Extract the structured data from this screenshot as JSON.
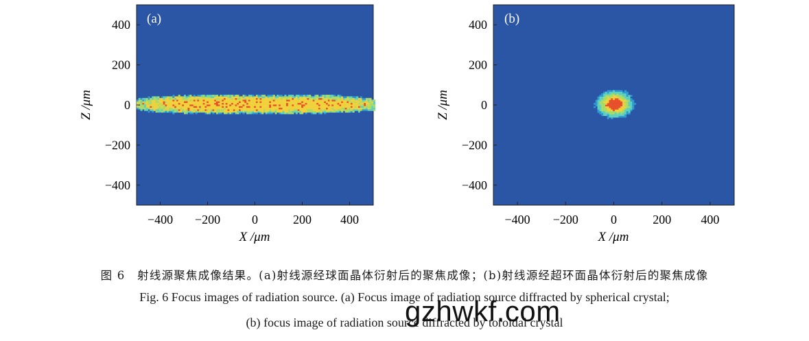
{
  "chart_data": [
    {
      "type": "heatmap",
      "panel_label": "(a)",
      "xlabel": "X /μm",
      "ylabel": "Z /μm",
      "xlim": [
        -500,
        500
      ],
      "ylim": [
        -500,
        500
      ],
      "xticks": [
        "−400",
        "−200",
        "0",
        "200",
        "400"
      ],
      "yticks": [
        "400",
        "200",
        "0",
        "−200",
        "−400"
      ],
      "xtick_values": [
        -400,
        -200,
        0,
        200,
        400
      ],
      "ytick_values": [
        400,
        200,
        0,
        -200,
        -400
      ],
      "spot": {
        "shape": "elongated",
        "x_range": [
          -480,
          480
        ],
        "z_range": [
          -45,
          45
        ]
      },
      "background_color": "#2b56a6",
      "colormap": [
        "#2b56a6",
        "#2f9bd3",
        "#5ed1bf",
        "#a8dc6a",
        "#f2d23c",
        "#e8502b"
      ]
    },
    {
      "type": "heatmap",
      "panel_label": "(b)",
      "xlabel": "X /μm",
      "ylabel": "Z /μm",
      "xlim": [
        -500,
        500
      ],
      "ylim": [
        -500,
        500
      ],
      "xticks": [
        "−400",
        "−200",
        "0",
        "200",
        "400"
      ],
      "yticks": [
        "400",
        "200",
        "0",
        "−200",
        "−400"
      ],
      "xtick_values": [
        -400,
        -200,
        0,
        200,
        400
      ],
      "ytick_values": [
        400,
        200,
        0,
        -200,
        -400
      ],
      "spot": {
        "shape": "round",
        "x_range": [
          -80,
          80
        ],
        "z_range": [
          -70,
          70
        ]
      },
      "background_color": "#2b56a6",
      "colormap": [
        "#2b56a6",
        "#2f9bd3",
        "#5ed1bf",
        "#a8dc6a",
        "#f2d23c",
        "#e8502b"
      ]
    }
  ],
  "caption": {
    "zh": "图 6　射线源聚焦成像结果。(a)射线源经球面晶体衍射后的聚焦成像；(b)射线源经超环面晶体衍射后的聚焦成像",
    "en_line1": "Fig. 6  Focus images of radiation source. (a) Focus image of radiation source diffracted by spherical crystal;",
    "en_line2": "(b) focus image of radiation source diffracted by toroidal crystal"
  },
  "watermark": "gzhwkf.com"
}
